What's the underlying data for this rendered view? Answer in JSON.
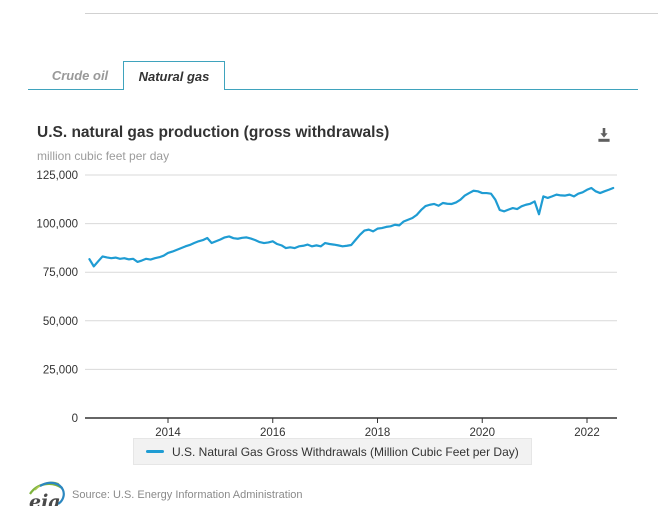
{
  "tabs": {
    "items": [
      {
        "label": "Crude oil",
        "active": false
      },
      {
        "label": "Natural gas",
        "active": true
      }
    ]
  },
  "header": {
    "title": "U.S. natural gas production (gross withdrawals)",
    "subtitle": "million cubic feet per day",
    "download_icon": "download-icon"
  },
  "legend": {
    "items": [
      {
        "label": "U.S. Natural Gas Gross Withdrawals (Million Cubic Feet per Day)",
        "color": "#1f9cd3"
      }
    ]
  },
  "footer": {
    "logo_text": "eia",
    "source_text": "Source: U.S. Energy Information Administration"
  },
  "colors": {
    "line": "#1f9cd3",
    "tab_accent": "#3fa3bd",
    "grid": "#d9d9d9",
    "axis": "#333333",
    "inactive_tab_text": "#999999"
  },
  "chart_data": {
    "type": "line",
    "title": "U.S. natural gas production (gross withdrawals)",
    "ylabel": "million cubic feet per day",
    "ylim": [
      0,
      125000
    ],
    "yticks": [
      0,
      25000,
      50000,
      75000,
      100000,
      125000
    ],
    "xticks": [
      2014,
      2016,
      2018,
      2020,
      2022
    ],
    "grid": true,
    "legend_position": "bottom",
    "x_start_month": "2012-07",
    "x_end_month": "2022-07",
    "x_cadence": "monthly",
    "series": [
      {
        "name": "U.S. Natural Gas Gross Withdrawals (Million Cubic Feet per Day)",
        "values": [
          81700,
          78000,
          80600,
          83100,
          82600,
          82200,
          82500,
          81900,
          82200,
          81600,
          81900,
          80300,
          81000,
          81900,
          81500,
          82200,
          82700,
          83500,
          84900,
          85600,
          86500,
          87400,
          88300,
          89000,
          90000,
          90900,
          91500,
          92600,
          90000,
          90900,
          91800,
          92900,
          93400,
          92500,
          92200,
          92700,
          92900,
          92300,
          91500,
          90500,
          90000,
          90300,
          90900,
          89500,
          88800,
          87400,
          87800,
          87400,
          88300,
          88600,
          89200,
          88300,
          88800,
          88300,
          90000,
          89500,
          89200,
          88800,
          88300,
          88600,
          89000,
          91700,
          94300,
          96400,
          96900,
          96000,
          97400,
          97700,
          98300,
          98600,
          99400,
          99100,
          101100,
          102000,
          102900,
          104500,
          107000,
          109000,
          109700,
          110100,
          109200,
          110600,
          110200,
          110100,
          110900,
          112300,
          114400,
          115700,
          116900,
          116600,
          115700,
          115700,
          115400,
          112300,
          107000,
          106300,
          107200,
          108000,
          107500,
          108900,
          109700,
          110200,
          111400,
          104800,
          114000,
          113200,
          114000,
          114900,
          114500,
          114400,
          114900,
          114000,
          115400,
          116100,
          117400,
          118300,
          116600,
          115700,
          116600,
          117400,
          118300
        ]
      }
    ]
  }
}
